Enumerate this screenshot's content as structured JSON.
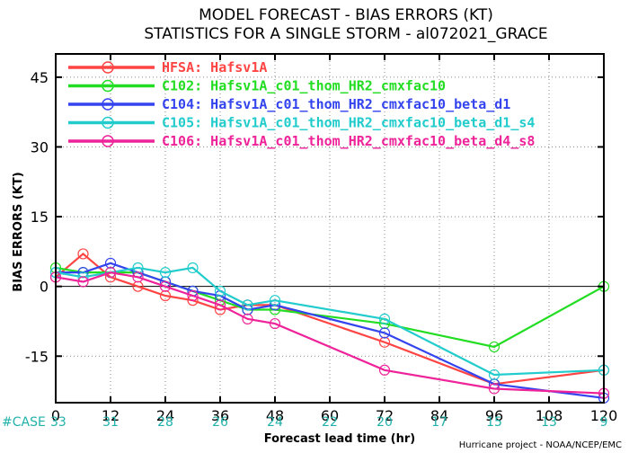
{
  "chart_data": {
    "type": "line",
    "title": "MODEL FORECAST - BIAS ERRORS (KT)",
    "subtitle": "STATISTICS FOR A SINGLE STORM - al072021_GRACE",
    "xlabel": "Forecast lead time (hr)",
    "ylabel": "BIAS ERRORS (KT)",
    "xlim": [
      0,
      120
    ],
    "ylim": [
      -25,
      50
    ],
    "xticks": [
      0,
      12,
      24,
      36,
      48,
      60,
      72,
      84,
      96,
      108,
      120
    ],
    "yticks": [
      -15,
      0,
      15,
      30,
      45
    ],
    "grid": true,
    "legend_position": "top-left",
    "case_label": "#CASE",
    "cases": [
      33,
      31,
      28,
      26,
      24,
      22,
      20,
      17,
      15,
      13,
      9
    ],
    "credit": "Hurricane project - NOAA/NCEP/EMC",
    "series": [
      {
        "id": "HFSA",
        "name": "HFSA: Hafsv1A",
        "color": "#ff4444",
        "x": [
          0,
          6,
          12,
          18,
          24,
          30,
          36,
          42,
          48,
          72,
          96,
          120
        ],
        "y": [
          2,
          7,
          2,
          0,
          -2,
          -3,
          -5,
          -4,
          -4,
          -12,
          -21,
          -18
        ]
      },
      {
        "id": "C102",
        "name": "C102: Hafsv1A_c01_thom_HR2_cmxfac10",
        "color": "#22dd22",
        "x": [
          0,
          6,
          12,
          18,
          24,
          30,
          36,
          42,
          48,
          72,
          96,
          120
        ],
        "y": [
          4,
          3,
          3,
          3,
          1,
          -1,
          -3,
          -5,
          -5,
          -8,
          -13,
          0
        ]
      },
      {
        "id": "C104",
        "name": "C104: Hafsv1A_c01_thom_HR2_cmxfac10_beta_d1",
        "color": "#3344ee",
        "x": [
          0,
          6,
          12,
          18,
          24,
          30,
          36,
          42,
          48,
          72,
          96,
          120
        ],
        "y": [
          3,
          3,
          5,
          3,
          1,
          -1,
          -2,
          -5,
          -4,
          -10,
          -21,
          -24
        ]
      },
      {
        "id": "C105",
        "name": "C105: Hafsv1A_c01_thom_HR2_cmxfac10_beta_d1_s4",
        "color": "#22cccc",
        "x": [
          0,
          6,
          12,
          18,
          24,
          30,
          36,
          42,
          48,
          72,
          96,
          120
        ],
        "y": [
          3,
          2,
          3,
          4,
          3,
          4,
          -1,
          -4,
          -3,
          -7,
          -19,
          -18
        ]
      },
      {
        "id": "C106",
        "name": "C106: Hafsv1A_c01_thom_HR2_cmxfac10_beta_d4_s8",
        "color": "#ee2299",
        "x": [
          0,
          6,
          12,
          18,
          24,
          30,
          36,
          42,
          48,
          72,
          96,
          120
        ],
        "y": [
          2,
          1,
          3,
          2,
          0,
          -2,
          -4,
          -7,
          -8,
          -18,
          -22,
          -23
        ]
      }
    ]
  }
}
